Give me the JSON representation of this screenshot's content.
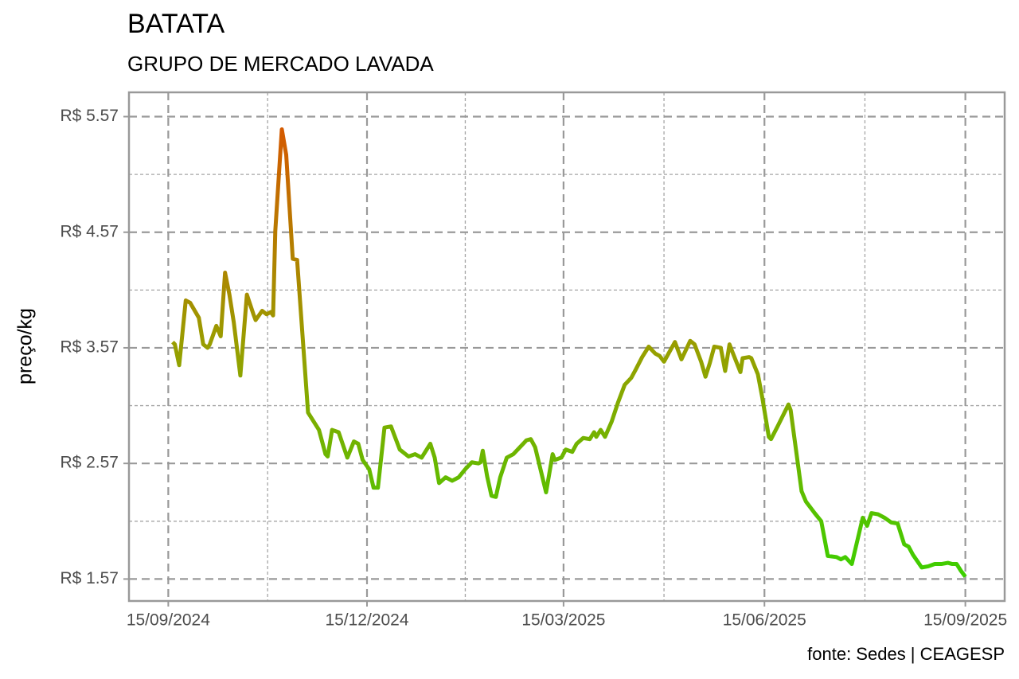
{
  "chart_data": {
    "type": "line",
    "title": "BATATA",
    "subtitle": "GRUPO DE MERCADO LAVADA",
    "ylabel": "preço/kg",
    "caption": "fonte: Sedes | CEAGESP",
    "x": [
      "2024-09-17",
      "2024-09-18",
      "2024-09-20",
      "2024-09-23",
      "2024-09-25",
      "2024-09-29",
      "2024-10-01",
      "2024-10-03",
      "2024-10-04",
      "2024-10-07",
      "2024-10-09",
      "2024-10-11",
      "2024-10-13",
      "2024-10-15",
      "2024-10-18",
      "2024-10-21",
      "2024-10-24",
      "2024-10-25",
      "2024-10-28",
      "2024-10-30",
      "2024-11-01",
      "2024-11-02",
      "2024-11-03",
      "2024-11-06",
      "2024-11-08",
      "2024-11-11",
      "2024-11-13",
      "2024-11-18",
      "2024-11-23",
      "2024-11-26",
      "2024-11-27",
      "2024-11-29",
      "2024-12-02",
      "2024-12-06",
      "2024-12-09",
      "2024-12-11",
      "2024-12-13",
      "2024-12-16",
      "2024-12-18",
      "2024-12-20",
      "2024-12-23",
      "2024-12-26",
      "2024-12-30",
      "2025-01-03",
      "2025-01-06",
      "2025-01-09",
      "2025-01-13",
      "2025-01-15",
      "2025-01-17",
      "2025-01-20",
      "2025-01-23",
      "2025-01-26",
      "2025-01-29",
      "2025-02-01",
      "2025-02-04",
      "2025-02-05",
      "2025-02-06",
      "2025-02-08",
      "2025-02-10",
      "2025-02-12",
      "2025-02-14",
      "2025-02-17",
      "2025-02-20",
      "2025-02-23",
      "2025-02-25",
      "2025-02-26",
      "2025-02-28",
      "2025-03-02",
      "2025-03-07",
      "2025-03-10",
      "2025-03-11",
      "2025-03-14",
      "2025-03-16",
      "2025-03-19",
      "2025-03-21",
      "2025-03-24",
      "2025-03-27",
      "2025-03-29",
      "2025-03-30",
      "2025-04-01",
      "2025-04-03",
      "2025-04-06",
      "2025-04-09",
      "2025-04-12",
      "2025-04-15",
      "2025-04-17",
      "2025-04-20",
      "2025-04-23",
      "2025-04-26",
      "2025-04-28",
      "2025-04-30",
      "2025-05-05",
      "2025-05-08",
      "2025-05-12",
      "2025-05-14",
      "2025-05-17",
      "2025-05-19",
      "2025-05-21",
      "2025-05-23",
      "2025-05-26",
      "2025-05-28",
      "2025-05-30",
      "2025-05-31",
      "2025-06-04",
      "2025-06-05",
      "2025-06-08",
      "2025-06-09",
      "2025-06-12",
      "2025-06-14",
      "2025-06-17",
      "2025-06-18",
      "2025-06-21",
      "2025-06-26",
      "2025-06-27",
      "2025-07-02",
      "2025-07-04",
      "2025-07-08",
      "2025-07-11",
      "2025-07-14",
      "2025-07-18",
      "2025-07-20",
      "2025-07-22",
      "2025-07-25",
      "2025-07-30",
      "2025-08-01",
      "2025-08-03",
      "2025-08-06",
      "2025-08-09",
      "2025-08-12",
      "2025-08-15",
      "2025-08-18",
      "2025-08-20",
      "2025-08-22",
      "2025-08-26",
      "2025-08-29",
      "2025-09-01",
      "2025-09-04",
      "2025-09-07",
      "2025-09-09",
      "2025-09-11",
      "2025-09-13",
      "2025-09-15"
    ],
    "values": [
      3.62,
      3.6,
      3.42,
      3.98,
      3.96,
      3.83,
      3.6,
      3.57,
      3.6,
      3.76,
      3.67,
      4.22,
      4.03,
      3.79,
      3.33,
      4.03,
      3.86,
      3.81,
      3.89,
      3.86,
      3.88,
      3.85,
      4.58,
      5.46,
      5.24,
      4.34,
      4.33,
      3.01,
      2.86,
      2.65,
      2.63,
      2.86,
      2.84,
      2.62,
      2.76,
      2.74,
      2.6,
      2.52,
      2.36,
      2.36,
      2.88,
      2.89,
      2.69,
      2.63,
      2.65,
      2.62,
      2.74,
      2.62,
      2.4,
      2.45,
      2.42,
      2.45,
      2.52,
      2.58,
      2.57,
      2.58,
      2.68,
      2.46,
      2.29,
      2.28,
      2.45,
      2.62,
      2.65,
      2.71,
      2.75,
      2.77,
      2.78,
      2.71,
      2.32,
      2.65,
      2.6,
      2.62,
      2.69,
      2.67,
      2.74,
      2.79,
      2.78,
      2.84,
      2.8,
      2.86,
      2.8,
      2.93,
      3.1,
      3.25,
      3.31,
      3.38,
      3.49,
      3.58,
      3.52,
      3.5,
      3.45,
      3.62,
      3.47,
      3.63,
      3.6,
      3.45,
      3.32,
      3.44,
      3.58,
      3.57,
      3.37,
      3.6,
      3.55,
      3.36,
      3.48,
      3.49,
      3.48,
      3.34,
      3.14,
      2.8,
      2.78,
      2.89,
      3.08,
      3.03,
      2.33,
      2.24,
      2.14,
      2.07,
      1.77,
      1.76,
      1.74,
      1.76,
      1.7,
      2.1,
      2.03,
      2.14,
      2.13,
      2.1,
      2.06,
      2.05,
      1.87,
      1.85,
      1.78,
      1.67,
      1.68,
      1.7,
      1.7,
      1.71,
      1.7,
      1.7,
      1.64,
      1.59
    ],
    "color_scale": [
      "#3ccf00",
      "#96a000",
      "#d45a00"
    ],
    "xlim": [
      "2024-08-28",
      "2025-10-03"
    ],
    "ylim": [
      1.38,
      5.78
    ],
    "xticks": [
      {
        "value": "2024-09-15",
        "label": "15/09/2024"
      },
      {
        "value": "2024-12-15",
        "label": "15/12/2024"
      },
      {
        "value": "2025-03-15",
        "label": "15/03/2025"
      },
      {
        "value": "2025-06-15",
        "label": "15/06/2025"
      },
      {
        "value": "2025-09-15",
        "label": "15/09/2025"
      }
    ],
    "yticks": [
      {
        "value": 1.57,
        "label": "R$ 1.57"
      },
      {
        "value": 2.57,
        "label": "R$ 2.57"
      },
      {
        "value": 3.57,
        "label": "R$ 3.57"
      },
      {
        "value": 4.57,
        "label": "R$ 4.57"
      },
      {
        "value": 5.57,
        "label": "R$ 5.57"
      }
    ],
    "grid": true
  }
}
